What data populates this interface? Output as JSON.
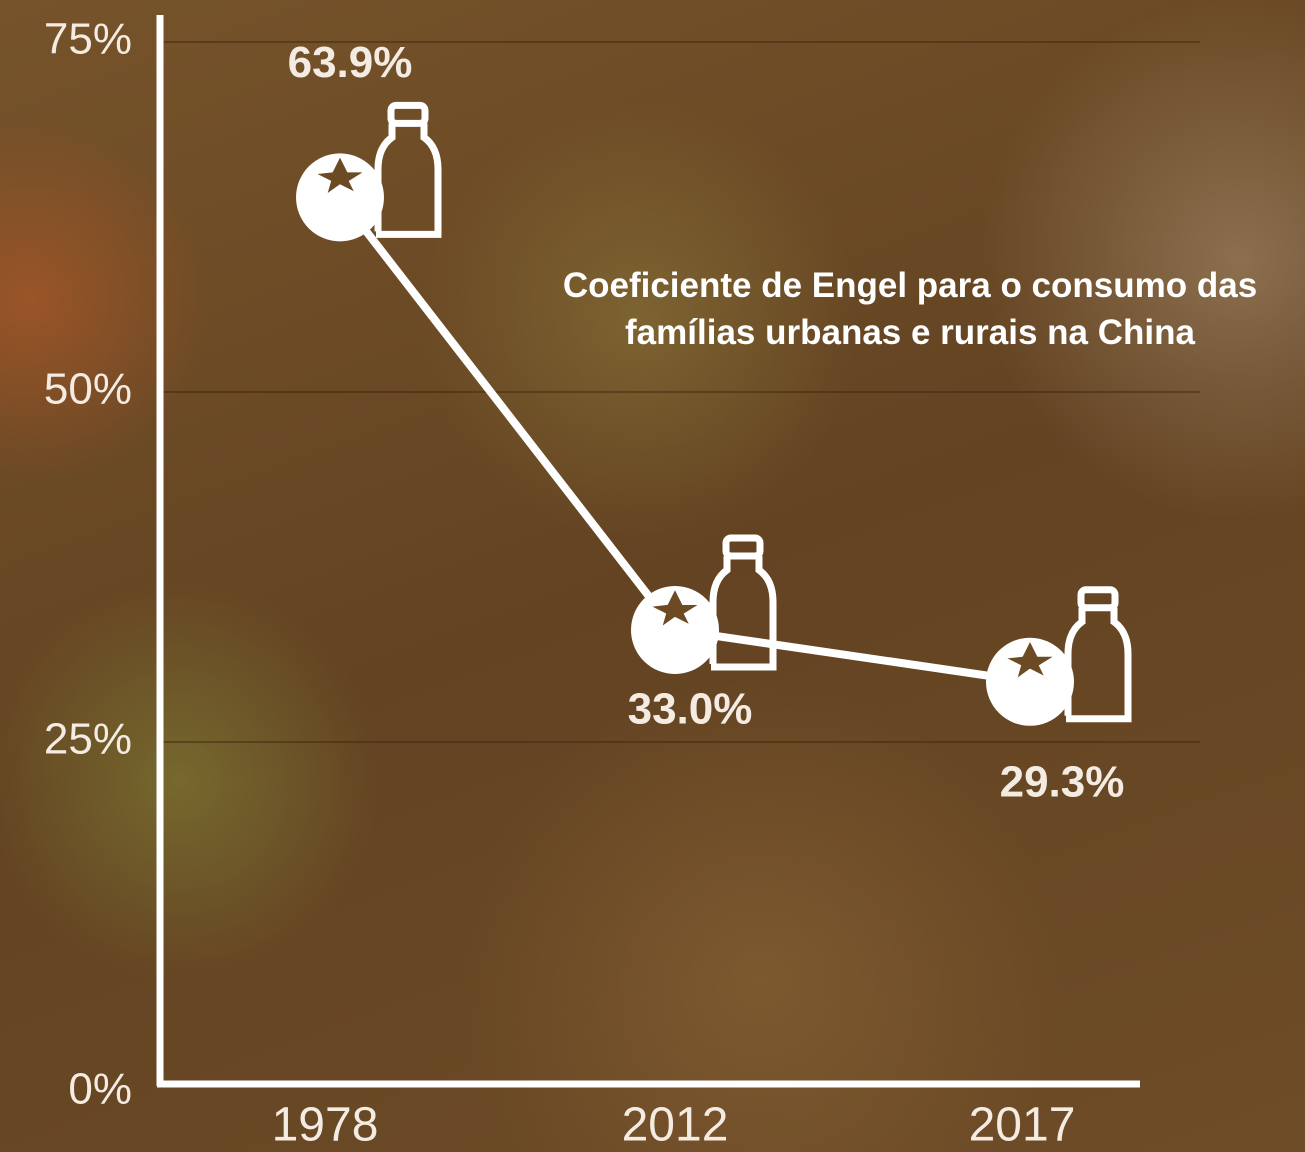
{
  "chart_data": {
    "type": "line",
    "title": "Coeficiente de Engel para o consumo das famílias urbanas e rurais na China",
    "categories": [
      "1978",
      "2012",
      "2017"
    ],
    "values": [
      63.9,
      33.0,
      29.3
    ],
    "value_labels": [
      "63.9%",
      "33.0%",
      "29.3%"
    ],
    "color": "#ffffff",
    "ylim": [
      0,
      75
    ],
    "yticks": [
      {
        "value": 0,
        "label": "0%"
      },
      {
        "value": 25,
        "label": "25%"
      },
      {
        "value": 50,
        "label": "50%"
      },
      {
        "value": 75,
        "label": "75%"
      }
    ],
    "grid": true
  }
}
